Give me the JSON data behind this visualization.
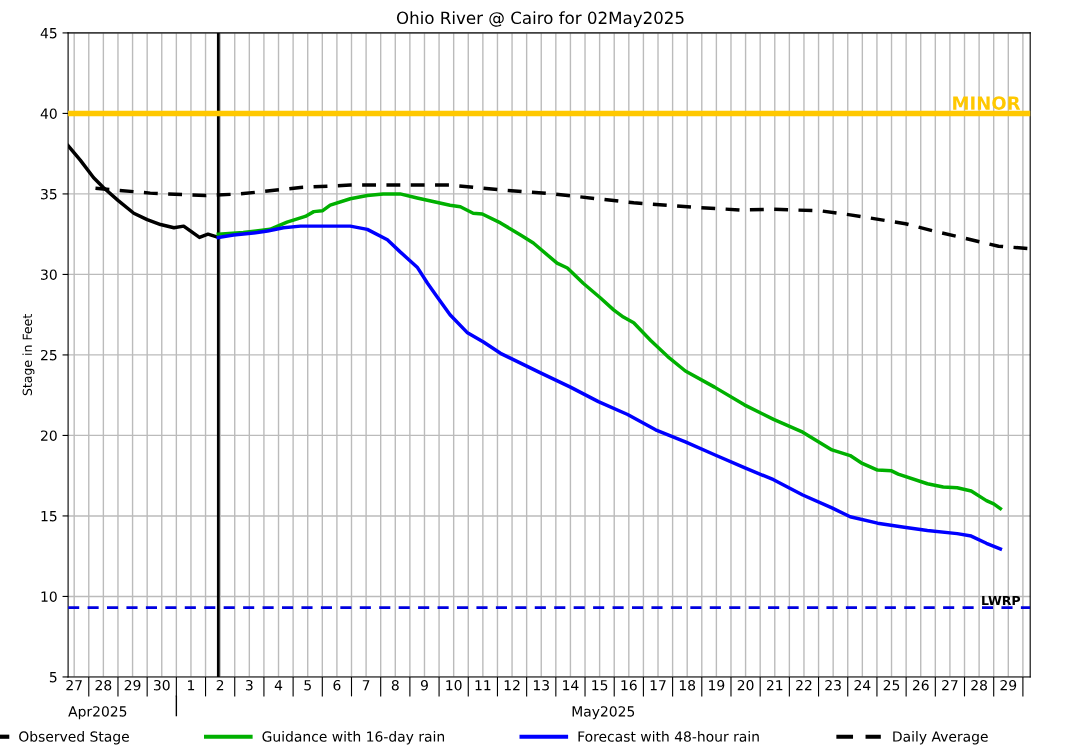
{
  "chart_data": {
    "type": "line",
    "title": "Ohio River @ Cairo for 02May2025",
    "ylabel": "Stage in Feet",
    "xlim": [
      "2025-04-27T07:00",
      "2025-05-30T06:00"
    ],
    "ylim": [
      5,
      45
    ],
    "yticks": [
      5,
      10,
      15,
      20,
      25,
      30,
      35,
      40,
      45
    ],
    "xticks": [
      {
        "value": "2025-04-27T12:00",
        "label": "27"
      },
      {
        "value": "2025-04-28T12:00",
        "label": "28"
      },
      {
        "value": "2025-04-29T12:00",
        "label": "29"
      },
      {
        "value": "2025-04-30T12:00",
        "label": "30"
      },
      {
        "value": "2025-05-01T12:00",
        "label": "1"
      },
      {
        "value": "2025-05-02T12:00",
        "label": "2"
      },
      {
        "value": "2025-05-03T12:00",
        "label": "3"
      },
      {
        "value": "2025-05-04T12:00",
        "label": "4"
      },
      {
        "value": "2025-05-05T12:00",
        "label": "5"
      },
      {
        "value": "2025-05-06T12:00",
        "label": "6"
      },
      {
        "value": "2025-05-07T12:00",
        "label": "7"
      },
      {
        "value": "2025-05-08T12:00",
        "label": "8"
      },
      {
        "value": "2025-05-09T12:00",
        "label": "9"
      },
      {
        "value": "2025-05-10T12:00",
        "label": "10"
      },
      {
        "value": "2025-05-11T12:00",
        "label": "11"
      },
      {
        "value": "2025-05-12T12:00",
        "label": "12"
      },
      {
        "value": "2025-05-13T12:00",
        "label": "13"
      },
      {
        "value": "2025-05-14T12:00",
        "label": "14"
      },
      {
        "value": "2025-05-15T12:00",
        "label": "15"
      },
      {
        "value": "2025-05-16T12:00",
        "label": "16"
      },
      {
        "value": "2025-05-17T12:00",
        "label": "17"
      },
      {
        "value": "2025-05-18T12:00",
        "label": "18"
      },
      {
        "value": "2025-05-19T12:00",
        "label": "19"
      },
      {
        "value": "2025-05-20T12:00",
        "label": "20"
      },
      {
        "value": "2025-05-21T12:00",
        "label": "21"
      },
      {
        "value": "2025-05-22T12:00",
        "label": "22"
      },
      {
        "value": "2025-05-23T12:00",
        "label": "23"
      },
      {
        "value": "2025-05-24T12:00",
        "label": "24"
      },
      {
        "value": "2025-05-25T12:00",
        "label": "25"
      },
      {
        "value": "2025-05-26T12:00",
        "label": "26"
      },
      {
        "value": "2025-05-27T12:00",
        "label": "27"
      },
      {
        "value": "2025-05-28T12:00",
        "label": "28"
      },
      {
        "value": "2025-05-29T12:00",
        "label": "29"
      },
      {
        "value": "2025-04-28",
        "label": null
      },
      {
        "value": "2025-04-29",
        "label": null
      },
      {
        "value": "2025-04-30",
        "label": null
      },
      {
        "value": "2025-05-01",
        "label": null
      },
      {
        "value": "2025-05-02",
        "label": null
      },
      {
        "value": "2025-05-03",
        "label": null
      },
      {
        "value": "2025-05-04",
        "label": null
      },
      {
        "value": "2025-05-05",
        "label": null
      },
      {
        "value": "2025-05-06",
        "label": null
      },
      {
        "value": "2025-05-07",
        "label": null
      },
      {
        "value": "2025-05-08",
        "label": null
      },
      {
        "value": "2025-05-09",
        "label": null
      },
      {
        "value": "2025-05-10",
        "label": null
      },
      {
        "value": "2025-05-11",
        "label": null
      },
      {
        "value": "2025-05-12",
        "label": null
      },
      {
        "value": "2025-05-13",
        "label": null
      },
      {
        "value": "2025-05-14",
        "label": null
      },
      {
        "value": "2025-05-15",
        "label": null
      },
      {
        "value": "2025-05-16",
        "label": null
      },
      {
        "value": "2025-05-17",
        "label": null
      },
      {
        "value": "2025-05-18",
        "label": null
      },
      {
        "value": "2025-05-19",
        "label": null
      },
      {
        "value": "2025-05-20",
        "label": null
      },
      {
        "value": "2025-05-21",
        "label": null
      },
      {
        "value": "2025-05-22",
        "label": null
      },
      {
        "value": "2025-05-23",
        "label": null
      },
      {
        "value": "2025-05-24",
        "label": null
      },
      {
        "value": "2025-05-25",
        "label": null
      },
      {
        "value": "2025-05-26",
        "label": null
      },
      {
        "value": "2025-05-27",
        "label": null
      },
      {
        "value": "2025-05-28",
        "label": null
      },
      {
        "value": "2025-05-29",
        "label": null
      },
      {
        "value": "2025-05-30",
        "label": null
      }
    ],
    "grid": true,
    "legend": "bottom",
    "annotations": [
      "Apr2025",
      "May2025"
    ],
    "ref_lines": [
      {
        "axis": "x",
        "value": "2025-05-02T10:30",
        "color": "#000000",
        "line_style": "solid"
      },
      {
        "axis": "y",
        "value": 40,
        "label": "MINOR",
        "color": "#ffc800",
        "line_style": "solid"
      },
      {
        "axis": "y",
        "value": 9.3,
        "label": "LWRP",
        "color": "#0000e0",
        "line_style": "dashed"
      }
    ],
    "series": [
      {
        "name": "Observed Stage",
        "color": "#000000",
        "line_style": "solid",
        "x": [
          "2025-04-27T07:00",
          "2025-04-27T17:00",
          "2025-04-28T04:00",
          "2025-04-28T12:00",
          "2025-04-29T00:00",
          "2025-04-29T13:00",
          "2025-04-30T00:00",
          "2025-04-30T11:00",
          "2025-04-30T22:00",
          "2025-05-01T06:00",
          "2025-05-01T11:30",
          "2025-05-01T19:00",
          "2025-05-02T02:00",
          "2025-05-02T10:30"
        ],
        "values": [
          38.0,
          37.1,
          36.0,
          35.4,
          34.6,
          33.8,
          33.4,
          33.1,
          32.9,
          33.0,
          32.7,
          32.3,
          32.5,
          32.3
        ]
      },
      {
        "name": "Guidance with 16-day rain",
        "color": "#00b000",
        "line_style": "solid",
        "x": [
          "2025-05-02T10:30",
          "2025-05-03T07:00",
          "2025-05-04T05:00",
          "2025-05-04T19:00",
          "2025-05-05T10:00",
          "2025-05-05T17:00",
          "2025-05-06T00:00",
          "2025-05-06T06:30",
          "2025-05-06T23:00",
          "2025-05-07T13:00",
          "2025-05-08T02:00",
          "2025-05-08T16:00",
          "2025-05-09T06:00",
          "2025-05-10T09:00",
          "2025-05-10T17:30",
          "2025-05-11T04:00",
          "2025-05-11T11:30",
          "2025-05-12T02:30",
          "2025-05-12T19:00",
          "2025-05-13T05:30",
          "2025-05-14T01:00",
          "2025-05-14T09:30",
          "2025-05-14T22:30",
          "2025-05-15T12:30",
          "2025-05-15T23:30",
          "2025-05-16T07:30",
          "2025-05-16T16:00",
          "2025-05-17T06:00",
          "2025-05-17T20:00",
          "2025-05-18T10:30",
          "2025-05-19T10:30",
          "2025-05-20T11:00",
          "2025-05-21T11:00",
          "2025-05-22T11:00",
          "2025-05-23T11:00",
          "2025-05-24T02:00",
          "2025-05-24T11:00",
          "2025-05-25T00:30",
          "2025-05-25T12:00",
          "2025-05-25T17:30",
          "2025-05-26T17:30",
          "2025-05-27T06:30",
          "2025-05-27T18:00",
          "2025-05-28T05:30",
          "2025-05-28T18:00",
          "2025-05-29T00:00",
          "2025-05-29T05:30"
        ],
        "values": [
          32.5,
          32.6,
          32.8,
          33.25,
          33.6,
          33.9,
          33.95,
          34.3,
          34.7,
          34.9,
          35.0,
          35.0,
          34.75,
          34.3,
          34.2,
          33.8,
          33.75,
          33.2,
          32.45,
          31.95,
          30.7,
          30.4,
          29.45,
          28.55,
          27.8,
          27.35,
          27.0,
          25.9,
          24.9,
          24.0,
          23.0,
          21.9,
          21.0,
          20.2,
          19.1,
          18.75,
          18.3,
          17.85,
          17.8,
          17.6,
          17.0,
          16.8,
          16.75,
          16.55,
          15.95,
          15.75,
          15.45
        ]
      },
      {
        "name": "Forecast with 48-hour rain",
        "color": "#0000ff",
        "line_style": "solid",
        "x": [
          "2025-05-02T10:30",
          "2025-05-02T23:00",
          "2025-05-03T18:30",
          "2025-05-04T03:00",
          "2025-05-04T16:00",
          "2025-05-05T06:00",
          "2025-05-06T23:00",
          "2025-05-07T13:00",
          "2025-05-08T05:30",
          "2025-05-08T16:00",
          "2025-05-09T06:00",
          "2025-05-09T14:30",
          "2025-05-09T22:30",
          "2025-05-10T09:00",
          "2025-05-10T23:00",
          "2025-05-11T12:30",
          "2025-05-12T02:30",
          "2025-05-13T11:00",
          "2025-05-14T12:00",
          "2025-05-15T11:00",
          "2025-05-16T11:00",
          "2025-05-17T10:00",
          "2025-05-18T10:30",
          "2025-05-19T10:30",
          "2025-05-20T11:00",
          "2025-05-21T11:00",
          "2025-05-22T11:00",
          "2025-05-23T11:00",
          "2025-05-24T02:00",
          "2025-05-25T00:30",
          "2025-05-25T22:30",
          "2025-05-26T17:30",
          "2025-05-27T18:00",
          "2025-05-28T05:30",
          "2025-05-28T18:00",
          "2025-05-29T05:30"
        ],
        "values": [
          32.3,
          32.45,
          32.6,
          32.7,
          32.9,
          33.0,
          33.0,
          32.8,
          32.15,
          31.4,
          30.45,
          29.45,
          28.6,
          27.5,
          26.4,
          25.8,
          25.1,
          23.9,
          23.0,
          22.1,
          21.3,
          20.35,
          19.6,
          18.8,
          18.0,
          17.25,
          16.3,
          15.5,
          14.95,
          14.55,
          14.3,
          14.1,
          13.9,
          13.75,
          13.3,
          12.95
        ]
      },
      {
        "name": "Daily Average",
        "color": "#000000",
        "line_style": "dashed",
        "x": [
          "2025-04-28T05:30",
          "2025-04-30T02:30",
          "2025-05-01T23:45",
          "2025-05-03T04:30",
          "2025-05-05T06:00",
          "2025-05-06T23:00",
          "2025-05-10T09:30",
          "2025-05-12T02:30",
          "2025-05-13T22:00",
          "2025-05-16T16:00",
          "2025-05-18T23:00",
          "2025-05-20T08:00",
          "2025-05-21T08:30",
          "2025-05-23T01:30",
          "2025-05-24T02:00",
          "2025-05-25T23:30",
          "2025-05-27T01:00",
          "2025-05-28T00:00",
          "2025-05-29T04:00",
          "2025-05-30T06:00"
        ],
        "values": [
          35.35,
          35.05,
          34.9,
          35.0,
          35.4,
          35.55,
          35.55,
          35.25,
          35.0,
          34.45,
          34.15,
          34.0,
          34.05,
          33.95,
          33.7,
          33.15,
          32.65,
          32.25,
          31.75,
          31.6
        ]
      }
    ]
  }
}
